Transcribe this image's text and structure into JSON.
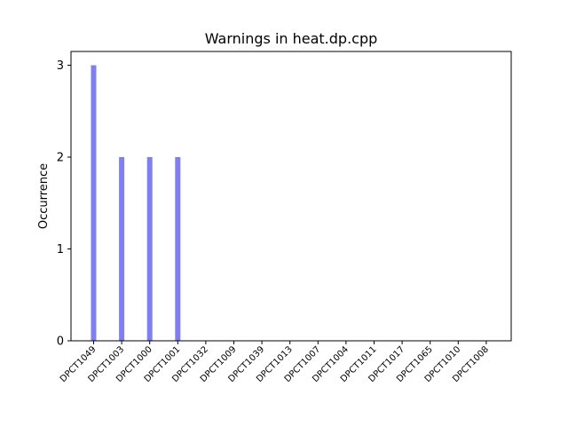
{
  "chart_data": {
    "type": "bar",
    "title": "Warnings in heat.dp.cpp",
    "xlabel": "",
    "ylabel": "Occurrence",
    "categories": [
      "DPCT1049",
      "DPCT1003",
      "DPCT1000",
      "DPCT1001",
      "DPCT1032",
      "DPCT1009",
      "DPCT1039",
      "DPCT1013",
      "DPCT1007",
      "DPCT1004",
      "DPCT1011",
      "DPCT1017",
      "DPCT1065",
      "DPCT1010",
      "DPCT1008"
    ],
    "values": [
      3,
      2,
      2,
      2,
      0,
      0,
      0,
      0,
      0,
      0,
      0,
      0,
      0,
      0,
      0
    ],
    "ylim": [
      0,
      3.15
    ],
    "yticks": [
      0,
      1,
      2,
      3
    ],
    "bar_color": "#7f7fef",
    "grid": false,
    "legend": "none"
  }
}
